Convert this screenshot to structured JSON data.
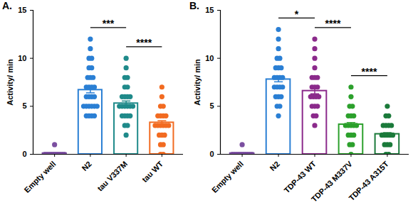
{
  "chart_data": [
    {
      "type": "bar",
      "title": "A.",
      "y_label": "Activity/ min",
      "categories": [
        "Empty well",
        "N2",
        "tau V337M",
        "tau WT"
      ],
      "values": [
        0.1,
        6.7,
        5.3,
        3.3
      ],
      "errors": [
        0.05,
        0.3,
        0.25,
        0.2
      ],
      "colors": [
        "#7b4fa0",
        "#2a7fd4",
        "#1f8a8a",
        "#f26b21"
      ],
      "points": [
        [
          0,
          0,
          0,
          0,
          0,
          0,
          0,
          0,
          0,
          0,
          1
        ],
        [
          4,
          4,
          4,
          4,
          5,
          5,
          5,
          5,
          5,
          5,
          6,
          6,
          6,
          6,
          7,
          7,
          7,
          7,
          8,
          8,
          8,
          9,
          9,
          10,
          10,
          11,
          12
        ],
        [
          2,
          3,
          3,
          4,
          4,
          4,
          4,
          5,
          5,
          5,
          5,
          5,
          5,
          6,
          6,
          6,
          6,
          7,
          7,
          8,
          8,
          9,
          10
        ],
        [
          0,
          0,
          1,
          1,
          2,
          2,
          2,
          3,
          3,
          3,
          3,
          3,
          3,
          4,
          4,
          4,
          4,
          5,
          5,
          6,
          7
        ]
      ],
      "comparisons": [
        {
          "from": "N2",
          "to": "tau V337M",
          "label": "***"
        },
        {
          "from": "tau V337M",
          "to": "tau WT",
          "label": "****"
        }
      ],
      "ylim": [
        0,
        15
      ],
      "yticks": [
        0,
        5,
        10,
        15
      ]
    },
    {
      "type": "bar",
      "title": "B.",
      "y_label": "Activity/ min",
      "categories": [
        "Empty well",
        "N2",
        "TDP-43 WT",
        "TDP-43 M337V",
        "TDP-43 A315T"
      ],
      "values": [
        0.1,
        7.8,
        6.6,
        3.1,
        2.1
      ],
      "errors": [
        0.05,
        0.25,
        0.3,
        0.2,
        0.15
      ],
      "colors": [
        "#7b4fa0",
        "#2a7fd4",
        "#8b2a8b",
        "#2ca02c",
        "#1b7a3a"
      ],
      "points": [
        [
          0,
          0,
          0,
          0,
          0,
          0,
          0,
          0,
          0,
          0,
          1
        ],
        [
          4,
          5,
          5,
          6,
          6,
          6,
          7,
          7,
          7,
          7,
          8,
          8,
          8,
          8,
          9,
          9,
          9,
          10,
          10,
          11,
          12,
          13
        ],
        [
          3,
          4,
          4,
          5,
          5,
          5,
          6,
          6,
          6,
          6,
          7,
          7,
          7,
          8,
          8,
          8,
          9,
          10,
          11,
          12
        ],
        [
          0,
          1,
          1,
          2,
          2,
          2,
          3,
          3,
          3,
          3,
          3,
          4,
          4,
          4,
          5,
          5,
          6,
          7
        ],
        [
          0,
          0,
          1,
          1,
          1,
          2,
          2,
          2,
          2,
          2,
          3,
          3,
          3,
          3,
          4,
          4,
          5
        ]
      ],
      "comparisons": [
        {
          "from": "N2",
          "to": "TDP-43 WT",
          "label": "*"
        },
        {
          "from": "TDP-43 WT",
          "to": "TDP-43 M337V",
          "label": "****"
        },
        {
          "from": "TDP-43 M337V",
          "to": "TDP-43 A315T",
          "label": "****"
        }
      ],
      "ylim": [
        0,
        15
      ],
      "yticks": [
        0,
        5,
        10,
        15
      ]
    }
  ]
}
